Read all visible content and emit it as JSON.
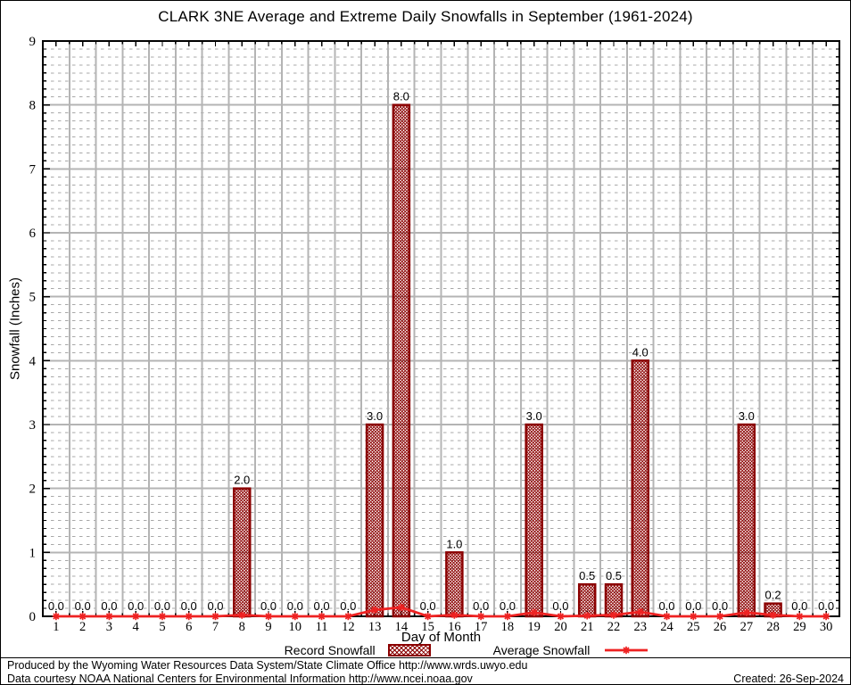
{
  "chart_data": {
    "type": "bar",
    "title": "CLARK 3NE Average and Extreme Daily Snowfalls in September (1961-2024)",
    "xlabel": "Day of Month",
    "ylabel": "Snowfall (Inches)",
    "ylim": [
      0,
      9
    ],
    "y_major_step": 1,
    "y_minor_divisions": 8,
    "grid": true,
    "legend_position": "bottom",
    "categories": [
      1,
      2,
      3,
      4,
      5,
      6,
      7,
      8,
      9,
      10,
      11,
      12,
      13,
      14,
      15,
      16,
      17,
      18,
      19,
      20,
      21,
      22,
      23,
      24,
      25,
      26,
      27,
      28,
      29,
      30
    ],
    "series": [
      {
        "name": "Record Snowfall",
        "type": "bar",
        "values": [
          0,
          0,
          0,
          0,
          0,
          0,
          0,
          2.0,
          0,
          0,
          0,
          0,
          3.0,
          8.0,
          0,
          1.0,
          0,
          0,
          3.0,
          0,
          0.5,
          0.5,
          4.0,
          0,
          0,
          0,
          3.0,
          0.2,
          0,
          0
        ]
      },
      {
        "name": "Average Snowfall",
        "type": "line",
        "values": [
          0,
          0,
          0,
          0,
          0,
          0,
          0,
          0.02,
          0,
          0,
          0,
          0,
          0.1,
          0.14,
          0,
          0.02,
          0,
          0,
          0.06,
          0,
          0.01,
          0.02,
          0.07,
          0,
          0,
          0,
          0.06,
          0.02,
          0,
          0
        ]
      }
    ],
    "bar_value_labels": [
      "0.0",
      "0.0",
      "0.0",
      "0.0",
      "0.0",
      "0.0",
      "0.0",
      "2.0",
      "0.0",
      "0.0",
      "0.0",
      "0.0",
      "3.0",
      "8.0",
      "0.0",
      "1.0",
      "0.0",
      "0.0",
      "3.0",
      "0.0",
      "0.5",
      "0.5",
      "4.0",
      "0.0",
      "0.0",
      "0.0",
      "3.0",
      "0.2",
      "0.0",
      "0.0"
    ],
    "colors": {
      "bar": "#8b0000",
      "line": "#ee2222",
      "grid_major": "#b4b4b4",
      "grid_minor": "#a8a8a8",
      "axis": "#000000",
      "text": "#000000"
    }
  },
  "footer": {
    "line1": "Produced by the Wyoming Water Resources Data System/State Climate Office http://www.wrds.uwyo.edu",
    "line2": "Data courtesy NOAA National Centers for Environmental Information http://www.ncei.noaa.gov",
    "created": "Created: 26-Sep-2024"
  }
}
